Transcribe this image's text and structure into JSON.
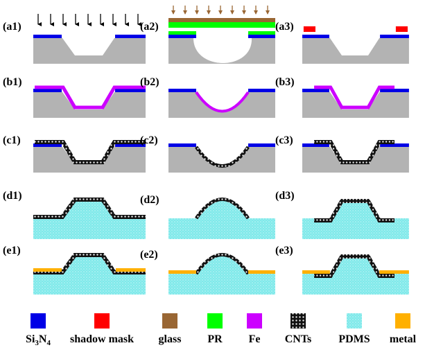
{
  "panels": {
    "labels": [
      "(a1)",
      "(a2)",
      "(a3)",
      "(b1)",
      "(b2)",
      "(b3)",
      "(c1)",
      "(c2)",
      "(c3)",
      "(d1)",
      "(d2)",
      "(d3)",
      "(e1)",
      "(e2)",
      "(e3)"
    ]
  },
  "legend": {
    "si3n4": [
      "Si",
      "3",
      "N",
      "4"
    ],
    "labels": [
      "shadow mask",
      "glass",
      "PR",
      "Fe",
      "CNTs",
      "PDMS",
      "metal"
    ]
  }
}
